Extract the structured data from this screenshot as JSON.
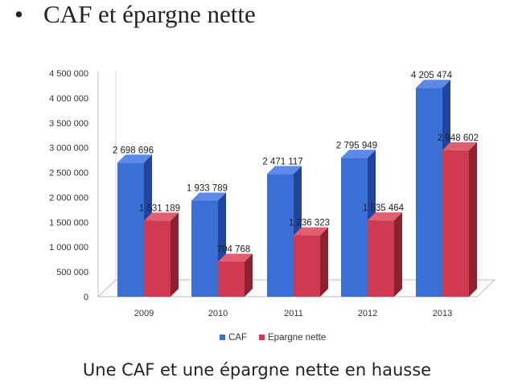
{
  "slide": {
    "bullet": "•",
    "title": "CAF et épargne nette",
    "subtitle": "Une CAF et une épargne nette en hausse"
  },
  "chart_data": {
    "type": "bar",
    "categories": [
      "2009",
      "2010",
      "2011",
      "2012",
      "2013"
    ],
    "series": [
      {
        "name": "CAF",
        "values": [
          2698696,
          1933789,
          2471117,
          2795949,
          4205474
        ],
        "labels": [
          "2 698 696",
          "1 933 789",
          "2 471 117",
          "2 795 949",
          "4 205 474"
        ],
        "color": "#3B6FD8",
        "side_color": "#22449A",
        "top_color": "#5D8AE8"
      },
      {
        "name": "Epargne nette",
        "values": [
          1531189,
          704768,
          1236323,
          1535464,
          2948602
        ],
        "labels": [
          "1 531 189",
          "704 768",
          "1 236 323",
          "1 535 464",
          "2 948 602"
        ],
        "color": "#CF3A50",
        "side_color": "#8E2030",
        "top_color": "#E15F72"
      }
    ],
    "yticks": [
      {
        "v": 0,
        "label": "0"
      },
      {
        "v": 500000,
        "label": "500 000"
      },
      {
        "v": 1000000,
        "label": "1 000 000"
      },
      {
        "v": 1500000,
        "label": "1 500 000"
      },
      {
        "v": 2000000,
        "label": "2 000 000"
      },
      {
        "v": 2500000,
        "label": "2 500 000"
      },
      {
        "v": 3000000,
        "label": "3 000 000"
      },
      {
        "v": 3500000,
        "label": "3 500 000"
      },
      {
        "v": 4000000,
        "label": "4 000 000"
      },
      {
        "v": 4500000,
        "label": "4 500 000"
      }
    ],
    "ylim": [
      0,
      4500000
    ],
    "grid": false,
    "legend_position": "bottom",
    "style": "3d-column"
  }
}
